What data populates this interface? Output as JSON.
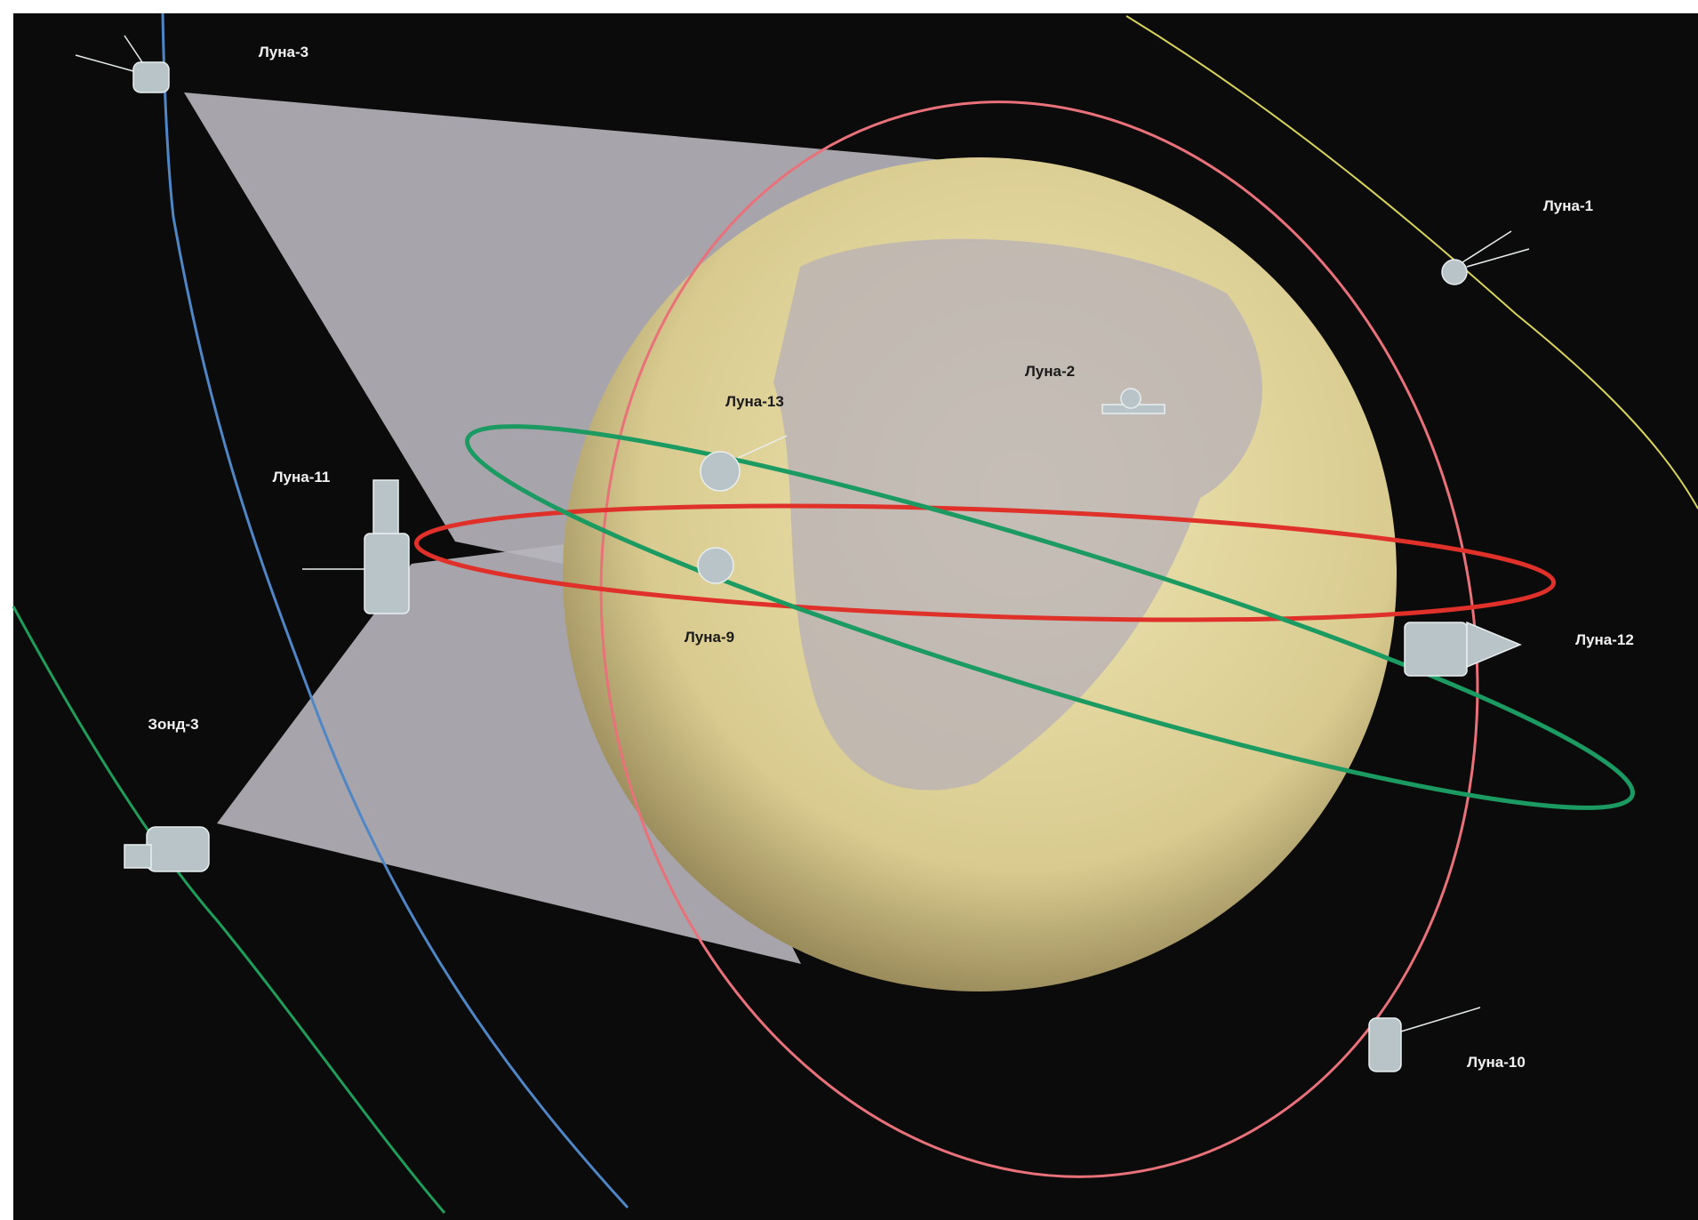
{
  "labels": [
    "Луна-3",
    "Луна-1",
    "Луна-2",
    "Луна-13",
    "Луна-11",
    "Луна-9",
    "Луна-12",
    "Зонд-3",
    "Луна-10"
  ]
}
